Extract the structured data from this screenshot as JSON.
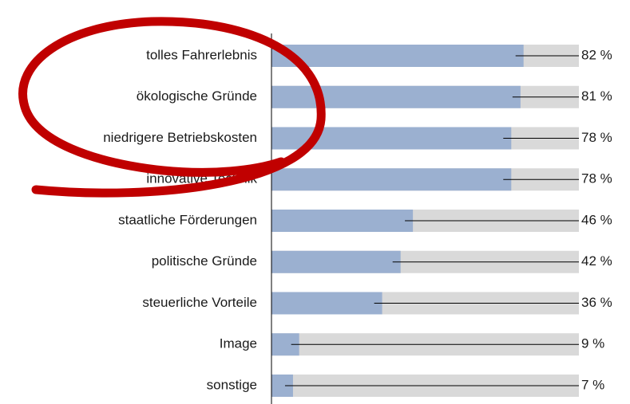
{
  "chart_data": {
    "type": "bar",
    "orientation": "horizontal",
    "categories": [
      "tolles Fahrerlebnis",
      "ökologische Gründe",
      "niedrigere Betriebskosten",
      "innovative Technik",
      "staatliche Förderungen",
      "politische Gründe",
      "steuerliche Vorteile",
      "Image",
      "sonstige"
    ],
    "values": [
      82,
      81,
      78,
      78,
      46,
      42,
      36,
      9,
      7
    ],
    "value_labels": [
      "82 %",
      "81 %",
      "78 %",
      "78 %",
      "46 %",
      "42 %",
      "36 %",
      "9 %",
      "7 %"
    ],
    "color": "#9bb0d0",
    "track_color": "#d9d9d9",
    "xlim": [
      0,
      100
    ]
  }
}
